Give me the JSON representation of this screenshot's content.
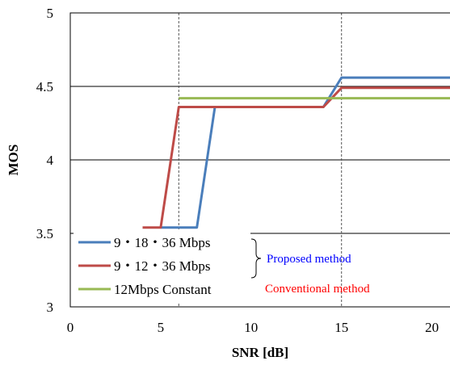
{
  "chart_data": {
    "type": "line",
    "xlabel": "SNR [dB]",
    "ylabel": "MOS",
    "xlim": [
      0,
      21
    ],
    "ylim": [
      3,
      5
    ],
    "xticks": [
      0,
      5,
      10,
      15,
      20
    ],
    "yticks": [
      3,
      3.5,
      4,
      4.5,
      5
    ],
    "ytick_labels": [
      "3",
      "3.5",
      "4",
      "4.5",
      "5"
    ],
    "grid": "horizontal",
    "vlines": [
      6,
      15
    ],
    "series": [
      {
        "name": "9・18・36 Mbps",
        "color": "#4a7ebb",
        "x": [
          5,
          7,
          8,
          14,
          15,
          21
        ],
        "y": [
          3.54,
          3.54,
          4.36,
          4.36,
          4.56,
          4.56
        ]
      },
      {
        "name": "9・12・36 Mbps",
        "color": "#be4b48",
        "x": [
          4,
          5,
          6,
          14,
          15,
          21
        ],
        "y": [
          3.54,
          3.54,
          4.36,
          4.36,
          4.49,
          4.49
        ]
      },
      {
        "name": "12Mbps Constant",
        "color": "#98b954",
        "x": [
          6,
          21
        ],
        "y": [
          4.42,
          4.42
        ]
      }
    ],
    "annotations": [
      {
        "text": "Proposed method",
        "color": "#0000ff"
      },
      {
        "text": "Conventional method",
        "color": "#ff0000"
      }
    ]
  }
}
